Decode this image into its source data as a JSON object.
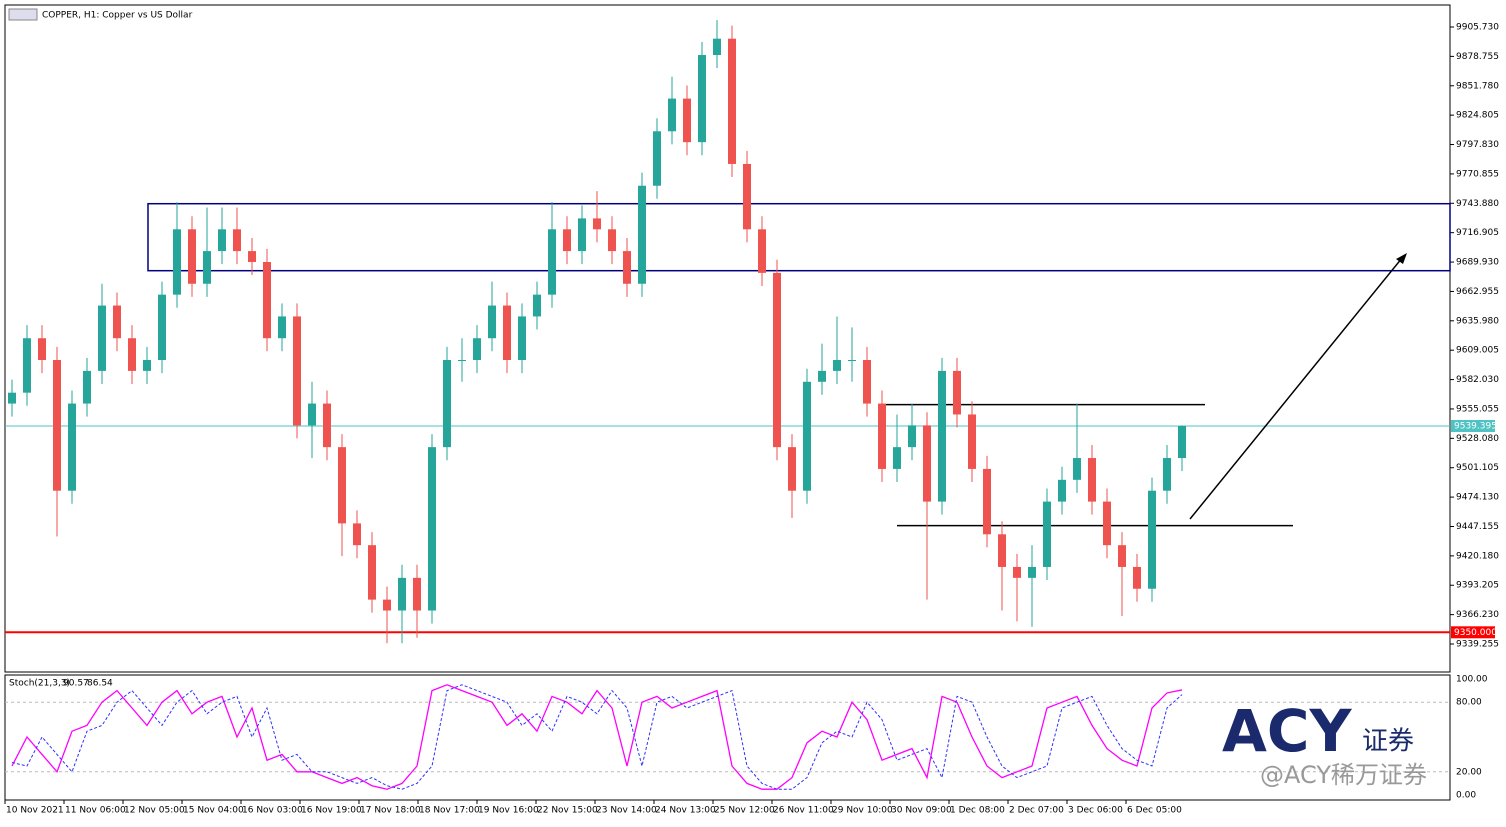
{
  "chart_data": [
    {
      "type": "candlestick",
      "title": "COPPER, H1:  Copper vs US Dollar",
      "open": [
        9560,
        9570,
        9620,
        9600,
        9480,
        9560,
        9590,
        9650,
        9620,
        9590,
        9600,
        9660,
        9720,
        9670,
        9700,
        9720,
        9700,
        9690,
        9620,
        9640,
        9540,
        9560,
        9520,
        9450,
        9430,
        9380,
        9370,
        9400,
        9370,
        9520,
        9600,
        9600,
        9620,
        9650,
        9600,
        9640,
        9660,
        9720,
        9700,
        9730,
        9720,
        9700,
        9670,
        9760,
        9810,
        9840,
        9800,
        9880,
        9895,
        9780,
        9720,
        9680,
        9520,
        9480,
        9580,
        9590,
        9600,
        9600,
        9560,
        9500,
        9520,
        9540,
        9470,
        9590,
        9550,
        9500,
        9440,
        9410,
        9400,
        9410,
        9470,
        9490,
        9510,
        9470,
        9430,
        9410,
        9390,
        9480,
        9510
      ],
      "high": [
        9582,
        9632,
        9632,
        9612,
        9572,
        9602,
        9670,
        9662,
        9632,
        9612,
        9672,
        9745,
        9732,
        9740,
        9740,
        9740,
        9712,
        9702,
        9652,
        9652,
        9580,
        9572,
        9532,
        9462,
        9442,
        9392,
        9412,
        9412,
        9532,
        9612,
        9620,
        9632,
        9672,
        9662,
        9652,
        9672,
        9745,
        9732,
        9742,
        9755,
        9732,
        9712,
        9772,
        9822,
        9860,
        9852,
        9892,
        9912,
        9907,
        9792,
        9732,
        9692,
        9532,
        9592,
        9615,
        9640,
        9630,
        9612,
        9572,
        9550,
        9560,
        9552,
        9602,
        9602,
        9562,
        9512,
        9452,
        9422,
        9430,
        9482,
        9502,
        9560,
        9522,
        9482,
        9442,
        9422,
        9492,
        9522,
        9540
      ],
      "low": [
        9548,
        9558,
        9588,
        9438,
        9468,
        9548,
        9578,
        9608,
        9578,
        9578,
        9588,
        9648,
        9658,
        9658,
        9688,
        9688,
        9678,
        9608,
        9608,
        9528,
        9510,
        9508,
        9420,
        9418,
        9368,
        9340,
        9340,
        9345,
        9358,
        9508,
        9580,
        9588,
        9608,
        9588,
        9588,
        9628,
        9648,
        9688,
        9688,
        9708,
        9688,
        9658,
        9658,
        9748,
        9798,
        9788,
        9788,
        9868,
        9768,
        9708,
        9668,
        9508,
        9455,
        9468,
        9568,
        9578,
        9580,
        9548,
        9488,
        9488,
        9508,
        9380,
        9458,
        9538,
        9488,
        9428,
        9370,
        9360,
        9355,
        9398,
        9458,
        9478,
        9458,
        9418,
        9365,
        9378,
        9378,
        9468,
        9498
      ],
      "close": [
        9570,
        9620,
        9600,
        9480,
        9560,
        9590,
        9650,
        9620,
        9590,
        9600,
        9660,
        9720,
        9670,
        9700,
        9720,
        9700,
        9690,
        9620,
        9640,
        9540,
        9560,
        9520,
        9450,
        9430,
        9380,
        9370,
        9400,
        9370,
        9520,
        9600,
        9600,
        9620,
        9650,
        9600,
        9640,
        9660,
        9720,
        9700,
        9730,
        9720,
        9700,
        9670,
        9760,
        9810,
        9840,
        9800,
        9880,
        9895,
        9780,
        9720,
        9680,
        9520,
        9480,
        9580,
        9590,
        9600,
        9600,
        9560,
        9500,
        9520,
        9540,
        9470,
        9590,
        9550,
        9500,
        9440,
        9410,
        9400,
        9410,
        9470,
        9490,
        9510,
        9470,
        9430,
        9410,
        9390,
        9480,
        9510,
        9539.395
      ],
      "up_color": "#26a69a",
      "down_color": "#ef5350",
      "ylim": [
        9313.56,
        9925.93
      ],
      "yticks": [
        {
          "value": 9905.73,
          "label": "9905.730"
        },
        {
          "value": 9878.755,
          "label": "9878.755"
        },
        {
          "value": 9851.78,
          "label": "9851.780"
        },
        {
          "value": 9824.805,
          "label": "9824.805"
        },
        {
          "value": 9797.83,
          "label": "9797.830"
        },
        {
          "value": 9770.855,
          "label": "9770.855"
        },
        {
          "value": 9743.88,
          "label": "9743.880"
        },
        {
          "value": 9716.905,
          "label": "9716.905"
        },
        {
          "value": 9689.93,
          "label": "9689.930"
        },
        {
          "value": 9662.955,
          "label": "9662.955"
        },
        {
          "value": 9635.98,
          "label": "9635.980"
        },
        {
          "value": 9609.005,
          "label": "9609.005"
        },
        {
          "value": 9582.03,
          "label": "9582.030"
        },
        {
          "value": 9555.055,
          "label": "9555.055"
        },
        {
          "value": 9528.08,
          "label": "9528.080"
        },
        {
          "value": 9501.105,
          "label": "9501.105"
        },
        {
          "value": 9474.13,
          "label": "9474.130"
        },
        {
          "value": 9447.155,
          "label": "9447.155"
        },
        {
          "value": 9420.18,
          "label": "9420.180"
        },
        {
          "value": 9393.205,
          "label": "9393.205"
        },
        {
          "value": 9366.23,
          "label": "9366.230"
        },
        {
          "value": 9339.255,
          "label": "9339.255"
        }
      ],
      "price_line_color": "#4fc3c3",
      "support": {
        "value": 9350,
        "label": "9350.000",
        "color": "#ff0000"
      },
      "zone": {
        "low": 9682,
        "high": 9743.5,
        "color": "#000080"
      },
      "levels": [
        9559,
        9448
      ]
    },
    {
      "type": "line",
      "title": "Stoch(21,3,3)",
      "series": [
        {
          "name": "main",
          "color": "#ff00ff",
          "values": [
            25,
            50,
            35,
            20,
            55,
            60,
            80,
            90,
            75,
            60,
            80,
            90,
            70,
            80,
            85,
            50,
            75,
            30,
            35,
            20,
            20,
            15,
            10,
            15,
            8,
            5,
            10,
            25,
            90,
            95,
            90,
            85,
            80,
            60,
            70,
            55,
            85,
            80,
            70,
            90,
            75,
            25,
            80,
            85,
            75,
            80,
            85,
            90,
            25,
            10,
            5,
            5,
            15,
            45,
            55,
            50,
            80,
            65,
            30,
            35,
            40,
            15,
            85,
            80,
            50,
            25,
            15,
            20,
            25,
            75,
            80,
            85,
            60,
            40,
            30,
            25,
            75,
            88,
            90.57
          ]
        },
        {
          "name": "signal",
          "color": "#3030ff",
          "values": [
            28,
            25,
            50,
            35,
            20,
            55,
            60,
            80,
            90,
            75,
            60,
            80,
            90,
            70,
            80,
            85,
            50,
            75,
            30,
            35,
            20,
            20,
            15,
            10,
            15,
            8,
            5,
            10,
            25,
            90,
            95,
            90,
            85,
            80,
            60,
            70,
            55,
            85,
            80,
            70,
            90,
            75,
            25,
            80,
            85,
            75,
            80,
            85,
            90,
            25,
            10,
            5,
            5,
            15,
            45,
            55,
            50,
            80,
            65,
            30,
            35,
            40,
            15,
            85,
            80,
            50,
            25,
            15,
            20,
            25,
            75,
            80,
            85,
            60,
            40,
            30,
            25,
            75,
            86.54
          ]
        }
      ],
      "ylim": [
        -4.31,
        103.45
      ],
      "yticks": [
        {
          "value": 100,
          "label": "100.00"
        },
        {
          "value": 80,
          "label": "80.00"
        },
        {
          "value": 20,
          "label": "20.00"
        },
        {
          "value": 0,
          "label": "0.00"
        }
      ],
      "x_labels": [
        "10 Nov 2021",
        "11 Nov 06:00",
        "12 Nov 05:00",
        "15 Nov 04:00",
        "16 Nov 03:00",
        "16 Nov 19:00",
        "17 Nov 18:00",
        "18 Nov 17:00",
        "19 Nov 16:00",
        "22 Nov 15:00",
        "23 Nov 14:00",
        "24 Nov 13:00",
        "25 Nov 12:00",
        "26 Nov 11:00",
        "29 Nov 10:00",
        "30 Nov 09:00",
        "1 Dec 08:00",
        "2 Dec 07:00",
        "3 Dec 06:00",
        "6 Dec 05:00"
      ]
    }
  ],
  "watermark": {
    "logo": "ACY",
    "logo_sub": "证券",
    "handle": "@ACY稀万证券"
  }
}
